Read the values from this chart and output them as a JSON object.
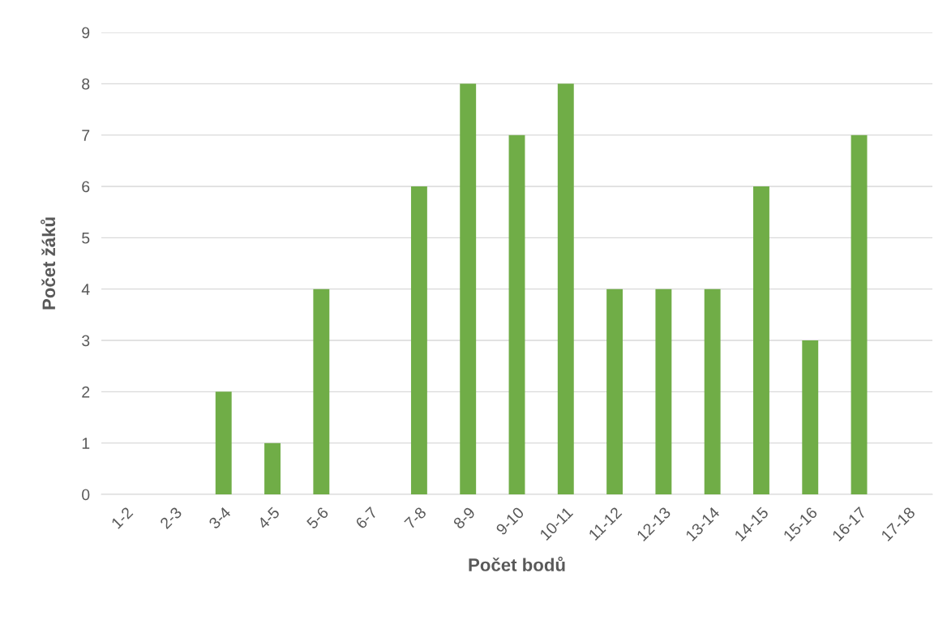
{
  "chart_data": {
    "type": "bar",
    "xlabel": "Počet bodů",
    "ylabel": "Počet žáků",
    "categories": [
      "1-2",
      "2-3",
      "3-4",
      "4-5",
      "5-6",
      "6-7",
      "7-8",
      "8-9",
      "9-10",
      "10-11",
      "11-12",
      "12-13",
      "13-14",
      "14-15",
      "15-16",
      "16-17",
      "17-18"
    ],
    "values": [
      0,
      0,
      2,
      1,
      4,
      0,
      6,
      8,
      7,
      8,
      4,
      4,
      4,
      6,
      3,
      7,
      0
    ],
    "color": "#70ad47",
    "ylim": [
      0,
      9
    ],
    "yticks": [
      0,
      1,
      2,
      3,
      4,
      5,
      6,
      7,
      8,
      9
    ],
    "grid": "y",
    "legend": false
  }
}
